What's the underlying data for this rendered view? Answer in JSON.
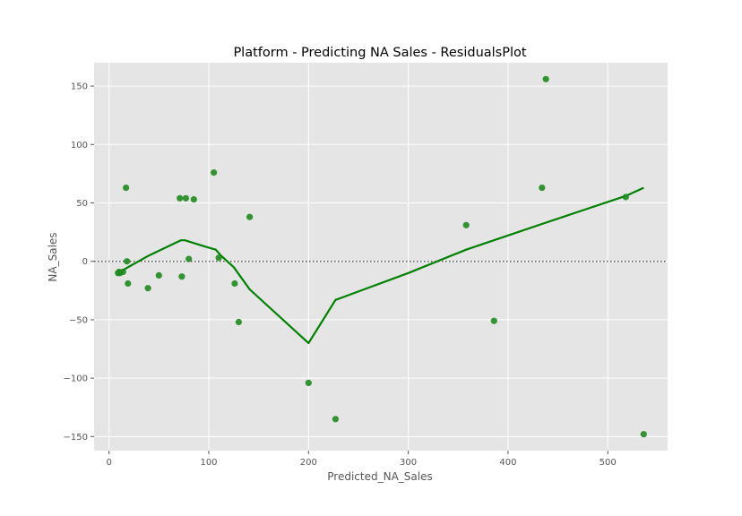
{
  "chart_data": {
    "type": "scatter",
    "title": "Platform - Predicting NA Sales - ResidualsPlot",
    "xlabel": "Predicted_NA_Sales",
    "ylabel": "NA_Sales",
    "xlim": [
      -15,
      560
    ],
    "ylim": [
      -162,
      170
    ],
    "xticks": [
      0,
      100,
      200,
      300,
      400,
      500
    ],
    "yticks": [
      -150,
      -100,
      -50,
      0,
      50,
      100,
      150
    ],
    "xtick_labels": [
      "0",
      "100",
      "200",
      "300",
      "400",
      "500"
    ],
    "ytick_labels": [
      "−150",
      "−100",
      "−50",
      "0",
      "50",
      "100",
      "150"
    ],
    "grid": true,
    "reference_line_y": 0,
    "points": [
      {
        "x": 9,
        "y": -10
      },
      {
        "x": 10,
        "y": -9
      },
      {
        "x": 11,
        "y": -10
      },
      {
        "x": 14,
        "y": -9
      },
      {
        "x": 17,
        "y": 63
      },
      {
        "x": 18,
        "y": 0
      },
      {
        "x": 19,
        "y": -19
      },
      {
        "x": 39,
        "y": -23
      },
      {
        "x": 50,
        "y": -12
      },
      {
        "x": 71,
        "y": 54
      },
      {
        "x": 73,
        "y": -13
      },
      {
        "x": 77,
        "y": 54
      },
      {
        "x": 80,
        "y": 2
      },
      {
        "x": 85,
        "y": 53
      },
      {
        "x": 105,
        "y": 76
      },
      {
        "x": 110,
        "y": 3
      },
      {
        "x": 126,
        "y": -19
      },
      {
        "x": 130,
        "y": -52
      },
      {
        "x": 141,
        "y": 38
      },
      {
        "x": 200,
        "y": -104
      },
      {
        "x": 227,
        "y": -135
      },
      {
        "x": 358,
        "y": 31
      },
      {
        "x": 386,
        "y": -51
      },
      {
        "x": 434,
        "y": 63
      },
      {
        "x": 438,
        "y": 156
      },
      {
        "x": 518,
        "y": 55
      },
      {
        "x": 536,
        "y": -148
      }
    ],
    "lowess": [
      {
        "x": 9,
        "y": -9
      },
      {
        "x": 15,
        "y": -7
      },
      {
        "x": 40,
        "y": 5
      },
      {
        "x": 72,
        "y": 18
      },
      {
        "x": 76,
        "y": 18
      },
      {
        "x": 95,
        "y": 13
      },
      {
        "x": 107,
        "y": 10
      },
      {
        "x": 112,
        "y": 5
      },
      {
        "x": 125,
        "y": -5
      },
      {
        "x": 141,
        "y": -24
      },
      {
        "x": 200,
        "y": -70
      },
      {
        "x": 227,
        "y": -33
      },
      {
        "x": 300,
        "y": -10
      },
      {
        "x": 358,
        "y": 10
      },
      {
        "x": 434,
        "y": 32
      },
      {
        "x": 518,
        "y": 56
      },
      {
        "x": 536,
        "y": 63
      }
    ],
    "colors": {
      "points": "#1f8a1f",
      "line": "#008000",
      "background": "#e5e5e5",
      "grid": "#ffffff",
      "reference": "#333333"
    }
  }
}
